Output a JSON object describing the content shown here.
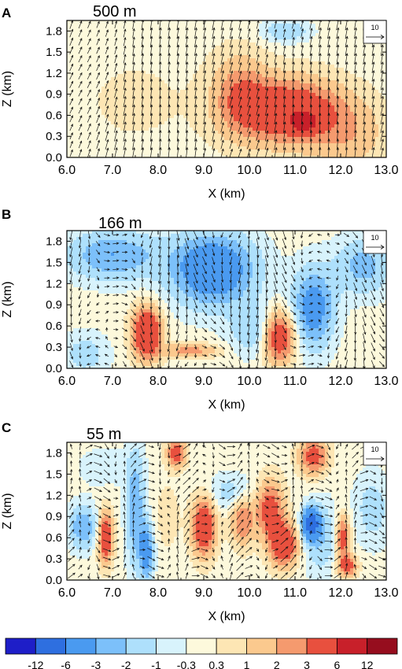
{
  "figure": {
    "colorbar": {
      "colors": [
        "#1e1ec8",
        "#2e6fe0",
        "#4a9af0",
        "#7cc0fa",
        "#aee0fc",
        "#d8f3fc",
        "#fdf9dc",
        "#fde6b4",
        "#fbc98e",
        "#f59a6e",
        "#e8503e",
        "#c8202a",
        "#960d1e"
      ],
      "tick_labels": [
        "-12",
        "-6",
        "-3",
        "-2",
        "-1",
        "-0.3",
        "0.3",
        "1",
        "2",
        "3",
        "6",
        "12"
      ]
    }
  },
  "chart_data": [
    {
      "type": "heatmap",
      "panel_label": "A",
      "title": "500 m",
      "xlabel": "X (km)",
      "ylabel": "Z (km)",
      "xlim": [
        6.0,
        13.0
      ],
      "ylim": [
        0.0,
        1.95
      ],
      "x_ticks": [
        "6.0",
        "7.0",
        "8.0",
        "9.0",
        "10.0",
        "11.0",
        "12.0",
        "13.0"
      ],
      "y_ticks": [
        "0.0",
        "0.3",
        "0.6",
        "0.9",
        "1.2",
        "1.5",
        "1.8"
      ],
      "reference_vector": "10",
      "blobs": [
        {
          "x": 10.9,
          "z": 0.65,
          "sx": 1.1,
          "sz": 0.45,
          "amp": 5
        },
        {
          "x": 9.8,
          "z": 0.9,
          "sx": 0.6,
          "sz": 0.55,
          "amp": 2.5
        },
        {
          "x": 11.2,
          "z": 0.5,
          "sx": 0.25,
          "sz": 0.12,
          "amp": 6
        },
        {
          "x": 12.2,
          "z": 0.3,
          "sx": 0.8,
          "sz": 0.5,
          "amp": 1.5
        },
        {
          "x": 10.8,
          "z": 1.8,
          "sx": 0.5,
          "sz": 0.15,
          "amp": -2
        },
        {
          "x": 7.5,
          "z": 0.8,
          "sx": 1.5,
          "sz": 0.8,
          "amp": 0.4
        }
      ],
      "vectors": {
        "u0": 1.0,
        "w0": 5,
        "wx": 11.0,
        "wz": 0.7,
        "wsx": 1.6,
        "wsz": 0.9,
        "wamp": 3,
        "uamp": 0.6,
        "freq": 2.0
      }
    },
    {
      "type": "heatmap",
      "panel_label": "B",
      "title": "166 m",
      "xlabel": "X (km)",
      "ylabel": "Z (km)",
      "xlim": [
        6.0,
        13.0
      ],
      "ylim": [
        0.0,
        1.95
      ],
      "x_ticks": [
        "6.0",
        "7.0",
        "8.0",
        "9.0",
        "10.0",
        "11.0",
        "12.0",
        "13.0"
      ],
      "y_ticks": [
        "0.0",
        "0.3",
        "0.6",
        "0.9",
        "1.2",
        "1.5",
        "1.8"
      ],
      "reference_vector": "10",
      "blobs": [
        {
          "x": 7.75,
          "z": 0.5,
          "sx": 0.3,
          "sz": 0.35,
          "amp": 6
        },
        {
          "x": 10.65,
          "z": 0.45,
          "sx": 0.35,
          "sz": 0.35,
          "amp": 5
        },
        {
          "x": 8.7,
          "z": 0.25,
          "sx": 0.6,
          "sz": 0.1,
          "amp": 2.5
        },
        {
          "x": 9.2,
          "z": 1.4,
          "sx": 0.9,
          "sz": 0.5,
          "amp": -5
        },
        {
          "x": 7.0,
          "z": 1.6,
          "sx": 1.0,
          "sz": 0.35,
          "amp": -3
        },
        {
          "x": 11.4,
          "z": 0.85,
          "sx": 0.45,
          "sz": 0.55,
          "amp": -4
        },
        {
          "x": 12.5,
          "z": 1.45,
          "sx": 0.6,
          "sz": 0.4,
          "amp": -2.5
        },
        {
          "x": 10.1,
          "z": 0.55,
          "sx": 0.5,
          "sz": 0.35,
          "amp": -2
        },
        {
          "x": 6.4,
          "z": 0.2,
          "sx": 0.5,
          "sz": 0.3,
          "amp": -1.5
        }
      ],
      "vectors": {
        "u0": 0.5,
        "w0": -2,
        "wx": 9.2,
        "wz": 1.2,
        "wsx": 1.3,
        "wsz": 0.8,
        "wamp": -4,
        "uamp": 3,
        "freq": 3.5
      }
    },
    {
      "type": "heatmap",
      "panel_label": "C",
      "title": "55 m",
      "xlabel": "X (km)",
      "ylabel": "Z (km)",
      "xlim": [
        6.0,
        13.0
      ],
      "ylim": [
        0.0,
        1.95
      ],
      "x_ticks": [
        "6.0",
        "7.0",
        "8.0",
        "9.0",
        "10.0",
        "11.0",
        "12.0",
        "13.0"
      ],
      "y_ticks": [
        "0.0",
        "0.3",
        "0.6",
        "0.9",
        "1.2",
        "1.5",
        "1.8"
      ],
      "reference_vector": "10",
      "blobs": [
        {
          "x": 6.85,
          "z": 0.6,
          "sx": 0.15,
          "sz": 0.35,
          "amp": 5
        },
        {
          "x": 6.35,
          "z": 0.75,
          "sx": 0.3,
          "sz": 0.3,
          "amp": -3
        },
        {
          "x": 7.5,
          "z": 1.0,
          "sx": 0.2,
          "sz": 0.8,
          "amp": -3
        },
        {
          "x": 7.75,
          "z": 0.4,
          "sx": 0.15,
          "sz": 0.4,
          "amp": -4
        },
        {
          "x": 8.4,
          "z": 1.8,
          "sx": 0.2,
          "sz": 0.2,
          "amp": 4
        },
        {
          "x": 9.0,
          "z": 0.75,
          "sx": 0.25,
          "sz": 0.4,
          "amp": 5
        },
        {
          "x": 9.85,
          "z": 0.85,
          "sx": 0.25,
          "sz": 0.35,
          "amp": 3
        },
        {
          "x": 10.45,
          "z": 1.0,
          "sx": 0.3,
          "sz": 0.4,
          "amp": 4
        },
        {
          "x": 10.75,
          "z": 0.5,
          "sx": 0.3,
          "sz": 0.3,
          "amp": 5
        },
        {
          "x": 11.35,
          "z": 0.8,
          "sx": 0.18,
          "sz": 0.2,
          "amp": -8
        },
        {
          "x": 11.55,
          "z": 0.6,
          "sx": 0.35,
          "sz": 0.5,
          "amp": -2
        },
        {
          "x": 11.4,
          "z": 1.75,
          "sx": 0.3,
          "sz": 0.25,
          "amp": 4
        },
        {
          "x": 12.05,
          "z": 0.6,
          "sx": 0.15,
          "sz": 0.3,
          "amp": 4
        },
        {
          "x": 12.15,
          "z": 0.2,
          "sx": 0.2,
          "sz": 0.15,
          "amp": 4
        },
        {
          "x": 9.6,
          "z": 1.25,
          "sx": 0.5,
          "sz": 0.25,
          "amp": -1.5
        },
        {
          "x": 6.8,
          "z": 1.6,
          "sx": 0.6,
          "sz": 0.3,
          "amp": -0.7
        },
        {
          "x": 12.7,
          "z": 1.0,
          "sx": 0.4,
          "sz": 0.5,
          "amp": -1.5
        },
        {
          "x": 8.2,
          "z": 0.9,
          "sx": 0.3,
          "sz": 0.5,
          "amp": 0.6
        }
      ],
      "vectors": {
        "u0": 1.5,
        "w0": 0,
        "wx": 10.0,
        "wz": 0.8,
        "wsx": 2.5,
        "wsz": 0.8,
        "wamp": 2,
        "uamp": 4,
        "freq": 6.5
      }
    }
  ]
}
